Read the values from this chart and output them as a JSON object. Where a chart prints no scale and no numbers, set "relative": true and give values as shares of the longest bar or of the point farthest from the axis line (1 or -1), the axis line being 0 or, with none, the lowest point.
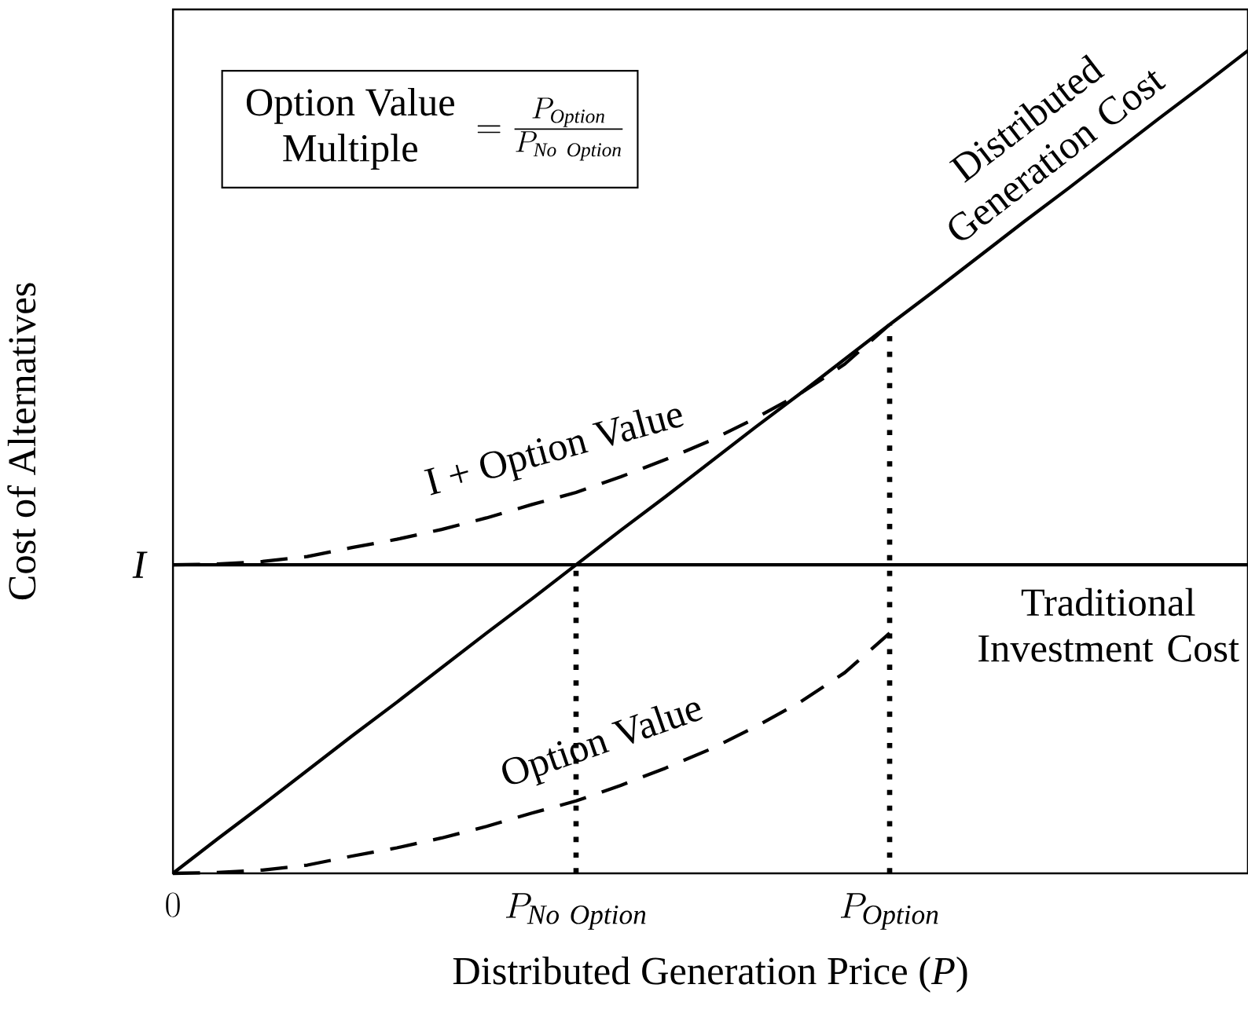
{
  "chart_data": {
    "type": "line",
    "relative": true,
    "xlabel": "Distributed Generation Price (*P*)",
    "ylabel": "Cost of Alternatives",
    "categories": [
      "0",
      null,
      null,
      null,
      null,
      null,
      null,
      null,
      null,
      "P_{\\mathit{No\\ Option}}",
      null,
      null,
      null,
      null,
      null,
      null,
      "P_{\\mathit{Option}}",
      null,
      null,
      null,
      null,
      null,
      null,
      null,
      null
    ],
    "legend": false,
    "grid": false,
    "marker": "none",
    "annotations": [
      "\\begin{array}{c}\\text{Option Value}\\\\\\text{Multiple}\\end{array}=\\frac{P_{\\mathit{Option}}}{P_{\\mathit{No\\ Option}}}",
      "*I*"
    ],
    "ref_lines": [
      {
        "axis": "x",
        "value": "P_{\\mathit{No\\ Option}}",
        "line_style": "dotted",
        "color": "#000000"
      },
      {
        "axis": "x",
        "value": "P_{\\mathit{Option}}",
        "line_style": "dotted",
        "color": "#000000"
      }
    ],
    "series": [
      {
        "name": "Distributed Generation Cost",
        "color": "#000000",
        "line_style": "solid",
        "values": [
          0,
          0.042,
          0.083,
          0.125,
          0.167,
          0.208,
          0.25,
          0.292,
          0.333,
          0.375,
          0.417,
          0.458,
          0.5,
          0.542,
          0.583,
          0.625,
          0.667,
          0.708,
          0.75,
          0.792,
          0.833,
          0.875,
          0.917,
          0.958,
          1
        ]
      },
      {
        "name": "Traditional Investment Cost",
        "color": "#000000",
        "line_style": "solid",
        "values": [
          0.375,
          0.375,
          0.375,
          0.375,
          0.375,
          0.375,
          0.375,
          0.375,
          0.375,
          0.375,
          0.375,
          0.375,
          0.375,
          0.375,
          0.375,
          0.375,
          0.375,
          0.375,
          0.375,
          0.375,
          0.375,
          0.375,
          0.375,
          0.375,
          0.375
        ]
      },
      {
        "name": "I + Option Value",
        "color": "#000000",
        "line_style": "dashed",
        "values": [
          0.375,
          0.376,
          0.379,
          0.385,
          0.396,
          0.406,
          0.418,
          0.432,
          0.448,
          0.463,
          0.482,
          0.503,
          0.526,
          0.553,
          0.583,
          0.619,
          0.667,
          null,
          null,
          null,
          null,
          null,
          null,
          null,
          null
        ]
      },
      {
        "name": "Option Value",
        "color": "#000000",
        "line_style": "dashed",
        "values": [
          0,
          0.001,
          0.004,
          0.01,
          0.021,
          0.031,
          0.043,
          0.057,
          0.073,
          0.088,
          0.107,
          0.128,
          0.151,
          0.178,
          0.208,
          0.244,
          0.292,
          null,
          null,
          null,
          null,
          null,
          null,
          null,
          null
        ]
      }
    ]
  }
}
